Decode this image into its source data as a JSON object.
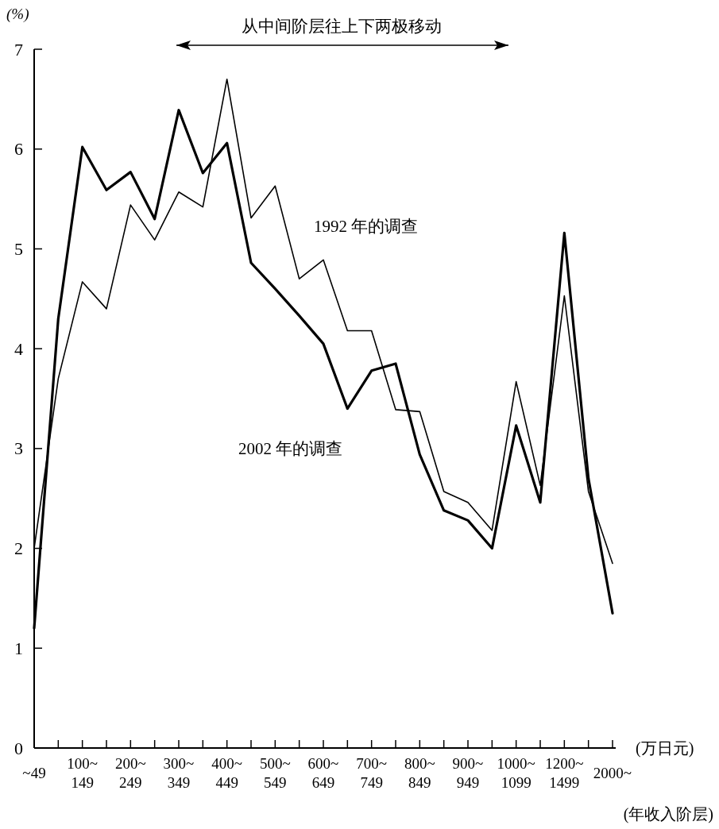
{
  "chart_data": {
    "type": "line",
    "title": "从中间阶层往上下两极移动",
    "ylabel": "(%)",
    "xlabel": "(年收入阶层)",
    "annotations": [
      "(万日元)"
    ],
    "categories": [
      "~49",
      null,
      "100~\n149",
      null,
      "200~\n249",
      null,
      "300~\n349",
      null,
      "400~\n449",
      null,
      "500~\n549",
      null,
      "600~\n649",
      null,
      "700~\n749",
      null,
      "800~\n849",
      null,
      "900~\n949",
      null,
      "1000~\n1099",
      null,
      "1200~\n1499",
      null,
      "2000~"
    ],
    "ylim": [
      0,
      7
    ],
    "yticks": [
      0,
      1,
      2,
      3,
      4,
      5,
      6,
      7
    ],
    "grid": false,
    "legend": false,
    "marker": "none",
    "line_style": "solid",
    "series": [
      {
        "name": "1992 年的调查",
        "color": "#000000",
        "values": [
          2.0,
          3.7,
          4.67,
          4.4,
          5.44,
          5.09,
          5.57,
          5.42,
          6.7,
          5.31,
          5.63,
          4.7,
          4.89,
          4.18,
          4.18,
          3.39,
          3.37,
          2.57,
          2.46,
          2.18,
          3.67,
          2.63,
          4.53,
          2.57,
          1.85
        ]
      },
      {
        "name": "2002 年的调查",
        "color": "#000000",
        "values": [
          1.2,
          4.3,
          6.02,
          5.59,
          5.77,
          5.3,
          6.39,
          5.76,
          6.06,
          4.86,
          4.6,
          4.33,
          4.05,
          3.4,
          3.78,
          3.85,
          2.94,
          2.38,
          2.28,
          2.0,
          3.23,
          2.46,
          5.16,
          2.7,
          1.35
        ]
      }
    ]
  }
}
